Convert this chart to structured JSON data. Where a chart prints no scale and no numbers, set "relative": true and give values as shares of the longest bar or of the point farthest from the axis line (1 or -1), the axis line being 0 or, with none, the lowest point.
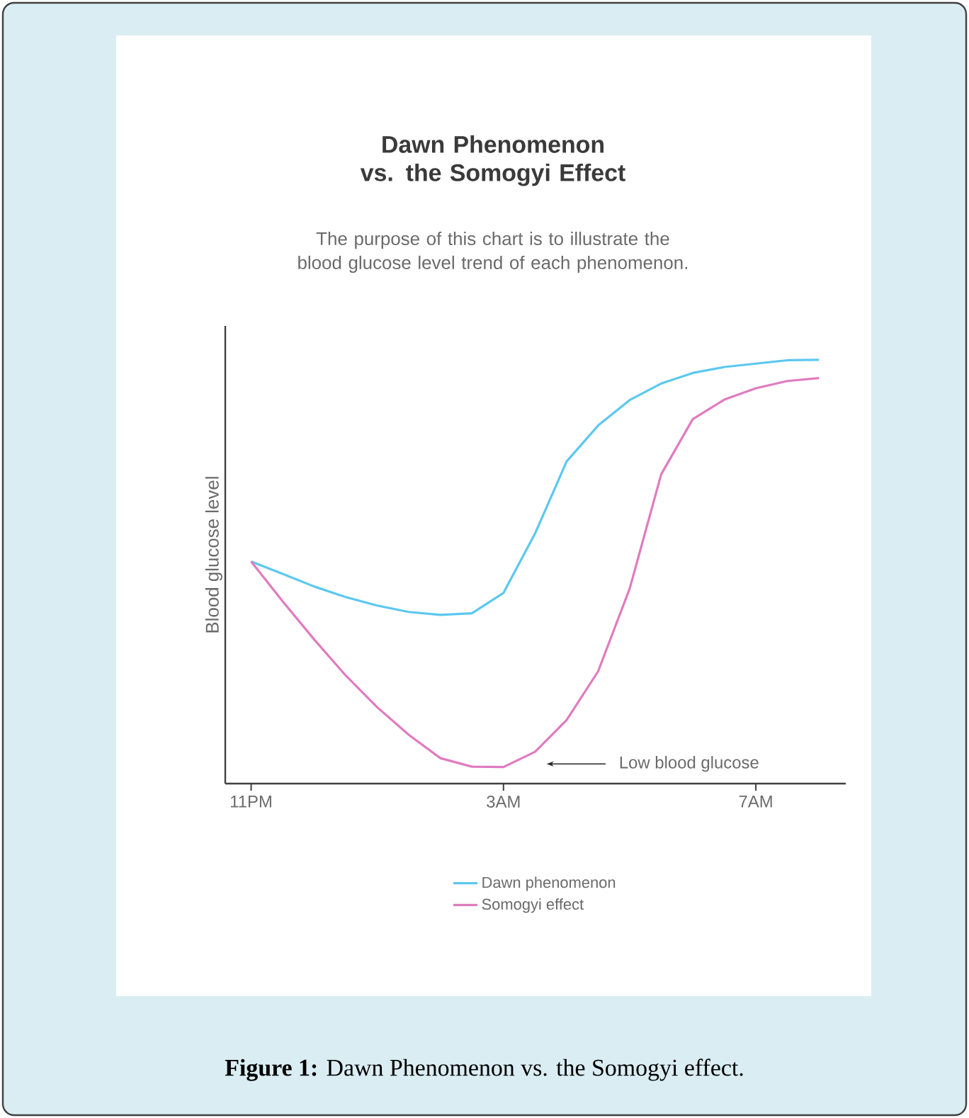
{
  "chart_data": {
    "type": "line",
    "title": "Dawn Phenomenon vs. the Somogyi Effect",
    "subtitle": "The purpose of this chart is to illustrate the blood glucose level trend of each phenomenon.",
    "ylabel": "Blood glucose level",
    "relative": true,
    "legend": "bottom",
    "categories": [
      "11PM",
      null,
      null,
      null,
      null,
      null,
      null,
      null,
      "3AM",
      null,
      null,
      null,
      null,
      null,
      null,
      null,
      "7AM",
      null,
      null
    ],
    "series": [
      {
        "name": "Dawn phenomenon",
        "color": "#5bc8ef",
        "values": [
          0.524,
          0.495,
          0.465,
          0.44,
          0.42,
          0.405,
          0.398,
          0.402,
          0.45,
          0.59,
          0.76,
          0.845,
          0.905,
          0.944,
          0.969,
          0.983,
          0.991,
          0.999,
          1.0
        ]
      },
      {
        "name": "Somogyi effect",
        "color": "#e07bbf",
        "values": [
          0.524,
          0.43,
          0.34,
          0.255,
          0.18,
          0.115,
          0.06,
          0.04,
          0.039,
          0.075,
          0.15,
          0.265,
          0.46,
          0.73,
          0.86,
          0.906,
          0.933,
          0.95,
          0.957
        ]
      }
    ],
    "annotations": [
      "Low blood glucose",
      "**Figure 1:** Dawn Phenomenon vs. the Somogyi effect."
    ]
  }
}
